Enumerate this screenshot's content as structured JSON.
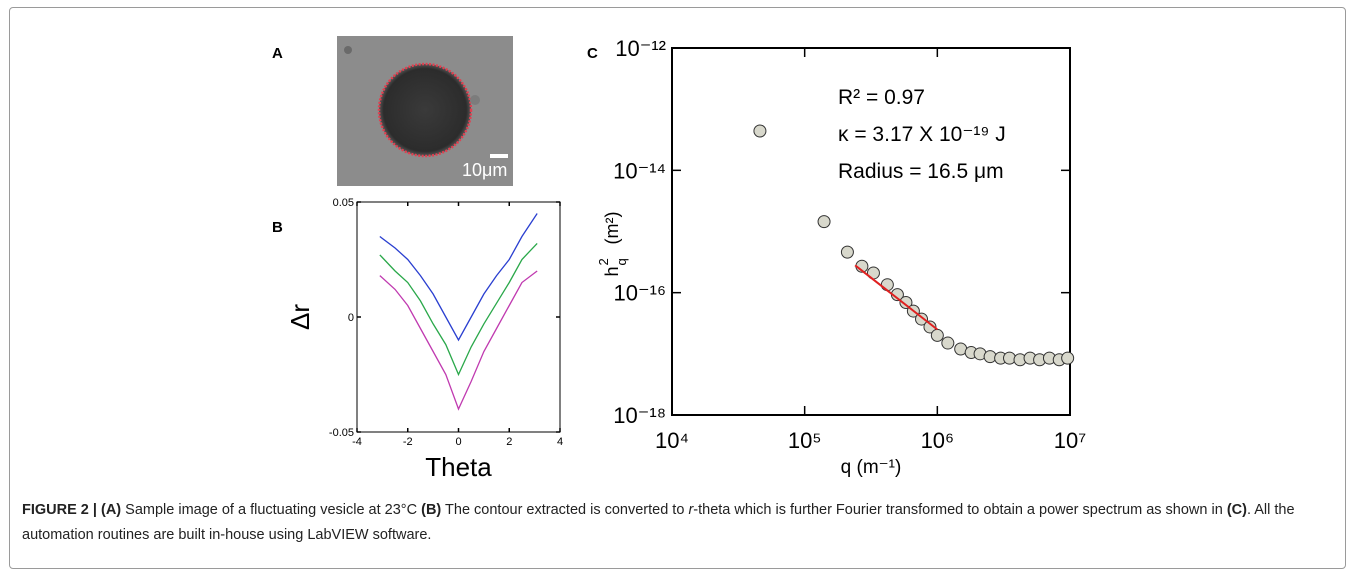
{
  "panel_a": {
    "panel_label": "A",
    "scale_label": "10μm"
  },
  "chart_data": [
    {
      "type": "line",
      "panel_label": "B",
      "x_label": "Theta",
      "y_label": "Δr",
      "xlim": [
        -4,
        4
      ],
      "xticks": [
        -4,
        -2,
        0,
        2,
        4
      ],
      "ylim": [
        -0.05,
        0.05
      ],
      "yticks": [
        -0.05,
        0,
        0.05
      ],
      "x": [
        -3.1,
        -2.5,
        -2,
        -1.5,
        -1,
        -0.5,
        0,
        0.5,
        1,
        1.5,
        2,
        2.5,
        3.1
      ],
      "series": [
        {
          "color": "#2a3fd0",
          "values": [
            0.035,
            0.03,
            0.025,
            0.018,
            0.01,
            0.0,
            -0.01,
            0.0,
            0.01,
            0.018,
            0.025,
            0.035,
            0.045
          ]
        },
        {
          "color": "#2aa84a",
          "values": [
            0.027,
            0.02,
            0.015,
            0.007,
            -0.003,
            -0.012,
            -0.025,
            -0.013,
            -0.003,
            0.006,
            0.015,
            0.025,
            0.032
          ]
        },
        {
          "color": "#c03ab0",
          "values": [
            0.018,
            0.012,
            0.005,
            -0.005,
            -0.015,
            -0.025,
            -0.04,
            -0.028,
            -0.015,
            -0.005,
            0.005,
            0.015,
            0.02
          ]
        }
      ]
    },
    {
      "type": "scatter",
      "panel_label": "C",
      "log_x": true,
      "log_y": true,
      "x_label": "q  (m⁻¹)",
      "y_label": "h",
      "y_label_sup": "2",
      "y_label_sub": "q",
      "y_label_unit": "(m²)",
      "xlim": [
        10000,
        10000000
      ],
      "ylim": [
        1e-18,
        1e-12
      ],
      "xticks": [
        {
          "value": 10000,
          "label": "10⁴"
        },
        {
          "value": 100000,
          "label": "10⁵"
        },
        {
          "value": 1000000,
          "label": "10⁶"
        },
        {
          "value": 10000000,
          "label": "10⁷"
        }
      ],
      "yticks": [
        {
          "value": 1e-18,
          "label": "10⁻¹⁸"
        },
        {
          "value": 1e-16,
          "label": "10⁻¹⁶"
        },
        {
          "value": 1e-14,
          "label": "10⁻¹⁴"
        },
        {
          "value": 1e-12,
          "label": "10⁻¹²"
        }
      ],
      "annotations": [
        "R² = 0.97",
        "κ = 3.17 X 10⁻¹⁹ J",
        "Radius = 16.5 μm"
      ],
      "series": [
        {
          "type": "scatter",
          "color": "#d8d8cc",
          "x": [
            46000,
            140000,
            210000,
            270000,
            330000,
            420000,
            500000,
            580000,
            660000,
            760000,
            880000,
            1000000,
            1200000,
            1500000,
            1800000,
            2100000,
            2500000,
            3000000,
            3500000,
            4200000,
            5000000,
            5900000,
            7000000,
            8300000,
            9600000
          ],
          "values": [
            4.4e-14,
            1.45e-15,
            4.6e-16,
            2.7e-16,
            2.1e-16,
            1.35e-16,
            9.3e-17,
            6.9e-17,
            5e-17,
            3.7e-17,
            2.75e-17,
            2e-17,
            1.5e-17,
            1.2e-17,
            1.05e-17,
            1e-17,
            9e-18,
            8.5e-18,
            8.5e-18,
            8e-18,
            8.5e-18,
            8e-18,
            8.5e-18,
            8e-18,
            8.5e-18
          ]
        },
        {
          "type": "line",
          "color": "#e02020",
          "x": [
            240000,
            1000000
          ],
          "values": [
            2.8e-16,
            2.5e-17
          ]
        }
      ]
    }
  ],
  "caption": [
    {
      "text": "FIGURE 2 | (A)",
      "style": "bold"
    },
    {
      "text": " Sample image of a fluctuating vesicle at 23°C ",
      "style": "normal"
    },
    {
      "text": "(B)",
      "style": "bold"
    },
    {
      "text": " The contour extracted is converted to ",
      "style": "normal"
    },
    {
      "text": "r",
      "style": "italic"
    },
    {
      "text": "-theta which is further Fourier transformed to obtain a power spectrum as shown in ",
      "style": "normal"
    },
    {
      "text": "(C)",
      "style": "bold"
    },
    {
      "text": ". All the automation routines are built in-house using LabVIEW software.",
      "style": "normal"
    }
  ]
}
